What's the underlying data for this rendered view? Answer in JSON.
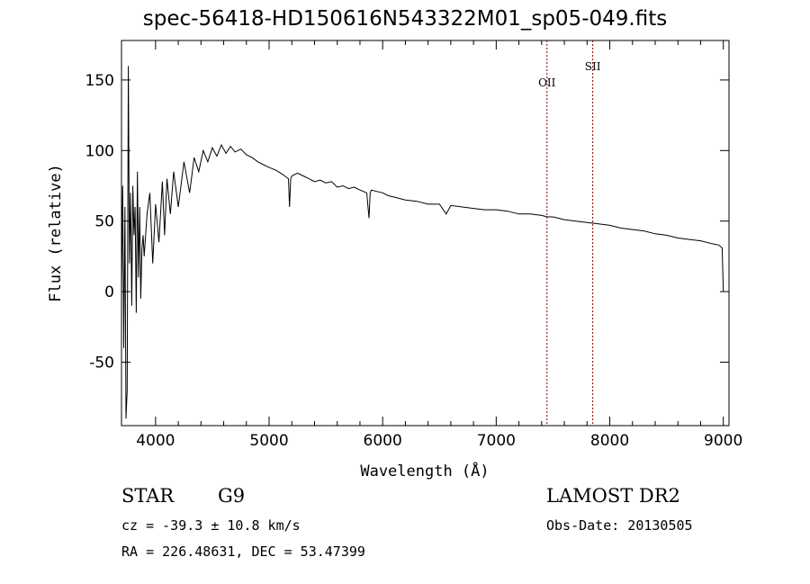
{
  "chart_data": {
    "type": "line",
    "title": "spec-56418-HD150616N543322M01_sp05-049.fits",
    "xlabel": "Wavelength (Å)",
    "ylabel": "Flux (relative)",
    "xlim": [
      3700,
      9050
    ],
    "ylim": [
      -95,
      178
    ],
    "xticks": [
      4000,
      5000,
      6000,
      7000,
      8000,
      9000
    ],
    "yticks": [
      -50,
      0,
      50,
      100,
      150
    ],
    "grid": false,
    "series": [
      {
        "color": "#000000",
        "x": [
          3700,
          3710,
          3720,
          3730,
          3740,
          3750,
          3760,
          3770,
          3780,
          3790,
          3800,
          3810,
          3820,
          3830,
          3840,
          3850,
          3860,
          3870,
          3880,
          3890,
          3900,
          3925,
          3950,
          3975,
          4000,
          4030,
          4060,
          4080,
          4100,
          4130,
          4160,
          4200,
          4250,
          4300,
          4340,
          4380,
          4420,
          4460,
          4500,
          4540,
          4580,
          4620,
          4660,
          4700,
          4750,
          4800,
          4850,
          4900,
          4950,
          5000,
          5060,
          5120,
          5170,
          5180,
          5190,
          5200,
          5250,
          5300,
          5350,
          5400,
          5450,
          5500,
          5550,
          5600,
          5650,
          5700,
          5750,
          5800,
          5860,
          5880,
          5890,
          5900,
          5950,
          6000,
          6050,
          6100,
          6200,
          6300,
          6400,
          6500,
          6560,
          6600,
          6700,
          6800,
          6900,
          7000,
          7100,
          7200,
          7300,
          7400,
          7450,
          7500,
          7600,
          7700,
          7800,
          7900,
          8000,
          8100,
          8200,
          8300,
          8400,
          8500,
          8600,
          8700,
          8800,
          8900,
          8960,
          8990,
          9000
        ],
        "y": [
          0,
          75,
          -40,
          60,
          -90,
          -70,
          160,
          20,
          70,
          -10,
          75,
          40,
          60,
          -15,
          85,
          10,
          60,
          -5,
          30,
          40,
          25,
          55,
          70,
          20,
          62,
          35,
          78,
          40,
          80,
          55,
          85,
          60,
          92,
          70,
          95,
          85,
          100,
          92,
          102,
          96,
          104,
          98,
          103,
          99,
          101,
          97,
          95,
          92,
          90,
          88,
          86,
          83,
          80,
          60,
          80,
          82,
          84,
          82,
          80,
          78,
          79,
          77,
          78,
          74,
          75,
          73,
          74,
          72,
          70,
          52,
          70,
          72,
          71,
          70,
          68,
          67,
          65,
          64,
          62,
          62,
          55,
          61,
          60,
          59,
          58,
          58,
          57,
          55,
          55,
          54,
          53,
          53,
          51,
          50,
          49,
          48,
          47,
          45,
          44,
          43,
          41,
          40,
          38,
          37,
          36,
          34,
          33,
          31,
          0
        ]
      }
    ],
    "annotations": [
      {
        "label": "OII",
        "x": 7447
      },
      {
        "label": "SII",
        "x": 7850
      }
    ]
  },
  "info": {
    "object_class": "STAR",
    "subclass": "G9",
    "survey": "LAMOST DR2",
    "cz": "cz = -39.3 ± 10.8 km/s",
    "obs_date": "Obs-Date: 20130505",
    "radec": "RA = 226.48631, DEC =  53.47399"
  }
}
